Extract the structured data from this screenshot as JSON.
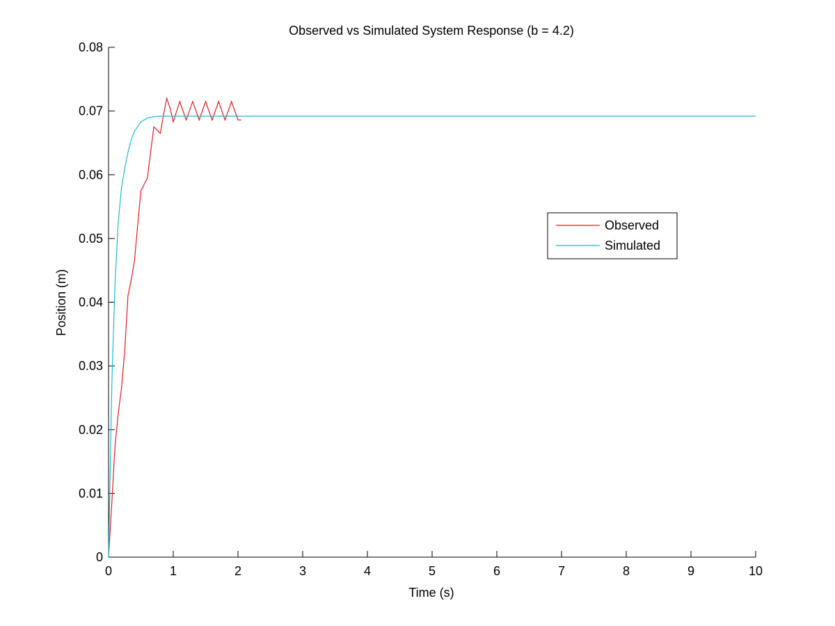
{
  "chart_data": {
    "type": "line",
    "title": "Observed vs Simulated System Response (b = 4.2)",
    "xlabel": "Time (s)",
    "ylabel": "Position (m)",
    "xlim": [
      0,
      10
    ],
    "ylim": [
      0,
      0.08
    ],
    "xticks": [
      0,
      1,
      2,
      3,
      4,
      5,
      6,
      7,
      8,
      9,
      10
    ],
    "xtick_labels": [
      "0",
      "1",
      "2",
      "3",
      "4",
      "5",
      "6",
      "7",
      "8",
      "9",
      "10"
    ],
    "yticks": [
      0,
      0.01,
      0.02,
      0.03,
      0.04,
      0.05,
      0.06,
      0.07,
      0.08
    ],
    "ytick_labels": [
      "0",
      "0.01",
      "0.02",
      "0.03",
      "0.04",
      "0.05",
      "0.06",
      "0.07",
      "0.08"
    ],
    "grid": false,
    "legend_position": "right",
    "series": [
      {
        "name": "Observed",
        "color": "#e41a1c",
        "x": [
          0,
          0.05,
          0.1,
          0.15,
          0.2,
          0.25,
          0.3,
          0.35,
          0.4,
          0.45,
          0.5,
          0.55,
          0.6,
          0.65,
          0.7,
          0.75,
          0.8,
          0.85,
          0.9,
          0.95,
          1.0,
          1.1,
          1.2,
          1.3,
          1.4,
          1.5,
          1.6,
          1.7,
          1.8,
          1.9,
          2.0,
          2.05
        ],
        "y": [
          0,
          0.0085,
          0.0175,
          0.0225,
          0.0265,
          0.0325,
          0.041,
          0.0435,
          0.0465,
          0.052,
          0.0575,
          0.0585,
          0.0595,
          0.0635,
          0.0675,
          0.067,
          0.0665,
          0.0695,
          0.072,
          0.0705,
          0.0683,
          0.0715,
          0.0686,
          0.0715,
          0.0686,
          0.0715,
          0.0686,
          0.0715,
          0.0686,
          0.0715,
          0.0686,
          0.0686
        ]
      },
      {
        "name": "Simulated",
        "color": "#17bccc",
        "x": [
          0,
          0.05,
          0.1,
          0.15,
          0.2,
          0.25,
          0.3,
          0.35,
          0.4,
          0.5,
          0.6,
          0.7,
          0.8,
          0.9,
          1.0,
          2,
          3,
          4,
          5,
          6,
          7,
          8,
          9,
          10
        ],
        "y": [
          0,
          0.027,
          0.043,
          0.0525,
          0.058,
          0.061,
          0.0635,
          0.0655,
          0.0668,
          0.0683,
          0.0689,
          0.0691,
          0.0692,
          0.0692,
          0.0692,
          0.0692,
          0.0692,
          0.0692,
          0.0692,
          0.0692,
          0.0692,
          0.0692,
          0.0692,
          0.0692
        ]
      }
    ]
  }
}
